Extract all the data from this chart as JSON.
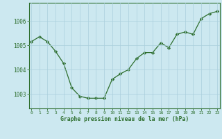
{
  "x": [
    0,
    1,
    2,
    3,
    4,
    5,
    6,
    7,
    8,
    9,
    10,
    11,
    12,
    13,
    14,
    15,
    16,
    17,
    18,
    19,
    20,
    21,
    22,
    23
  ],
  "y": [
    1005.15,
    1005.35,
    1005.15,
    1004.75,
    1004.25,
    1003.25,
    1002.9,
    1002.82,
    1002.82,
    1002.82,
    1003.6,
    1003.82,
    1004.0,
    1004.45,
    1004.7,
    1004.7,
    1005.1,
    1004.9,
    1005.45,
    1005.55,
    1005.45,
    1006.1,
    1006.3,
    1006.4
  ],
  "line_color": "#2d6e2d",
  "marker_color": "#2d6e2d",
  "bg_color": "#cce8f0",
  "grid_color": "#aacfdc",
  "axis_color": "#2d6e2d",
  "xlabel": "Graphe pression niveau de la mer (hPa)",
  "xlabel_color": "#2d6e2d",
  "tick_color": "#2d6e2d",
  "yticks": [
    1003,
    1004,
    1005,
    1006
  ],
  "xticks": [
    0,
    1,
    2,
    3,
    4,
    5,
    6,
    7,
    8,
    9,
    10,
    11,
    12,
    13,
    14,
    15,
    16,
    17,
    18,
    19,
    20,
    21,
    22,
    23
  ],
  "ylim": [
    1002.4,
    1006.75
  ],
  "xlim": [
    -0.3,
    23.3
  ]
}
